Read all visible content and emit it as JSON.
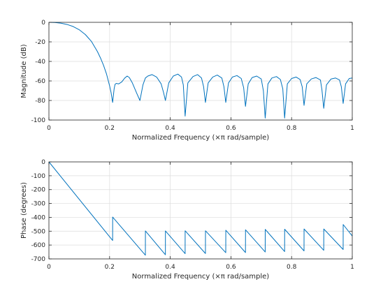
{
  "chart_data": [
    {
      "type": "line",
      "title": "",
      "xlabel": "Normalized Frequency (×π rad/sample)",
      "ylabel": "Magnitude (dB)",
      "xlim": [
        0,
        1
      ],
      "ylim": [
        -100,
        0
      ],
      "xticks": [
        0,
        0.2,
        0.4,
        0.6,
        0.8,
        1
      ],
      "yticks": [
        -100,
        -80,
        -60,
        -40,
        -20,
        0
      ],
      "xtick_labels": [
        "0",
        "0.2",
        "0.4",
        "0.6",
        "0.8",
        "1"
      ],
      "ytick_labels": [
        "-100",
        "-80",
        "-60",
        "-40",
        "-20",
        "0"
      ],
      "grid": true,
      "series": [
        {
          "color": "#0072bd",
          "x": [
            0,
            0.02,
            0.04,
            0.06,
            0.08,
            0.1,
            0.12,
            0.14,
            0.16,
            0.17,
            0.18,
            0.19,
            0.2,
            0.205,
            0.21,
            0.215,
            0.218,
            0.222,
            0.23,
            0.24,
            0.25,
            0.258,
            0.265,
            0.275,
            0.29,
            0.3,
            0.31,
            0.318,
            0.326,
            0.34,
            0.355,
            0.37,
            0.378,
            0.384,
            0.395,
            0.41,
            0.425,
            0.437,
            0.443,
            0.449,
            0.458,
            0.475,
            0.49,
            0.503,
            0.51,
            0.516,
            0.525,
            0.54,
            0.555,
            0.57,
            0.577,
            0.583,
            0.592,
            0.605,
            0.62,
            0.634,
            0.642,
            0.648,
            0.657,
            0.67,
            0.685,
            0.7,
            0.707,
            0.713,
            0.722,
            0.735,
            0.75,
            0.763,
            0.771,
            0.777,
            0.786,
            0.8,
            0.815,
            0.828,
            0.835,
            0.841,
            0.85,
            0.865,
            0.88,
            0.895,
            0.9,
            0.906,
            0.915,
            0.93,
            0.945,
            0.958,
            0.964,
            0.97,
            0.978,
            0.99,
            1.0
          ],
          "y": [
            0,
            -0.2,
            -0.9,
            -2.2,
            -4.3,
            -7.6,
            -12.5,
            -19.5,
            -30,
            -36.5,
            -44,
            -53,
            -65,
            -72,
            -82,
            -68,
            -63.5,
            -62.5,
            -63,
            -61,
            -57,
            -55,
            -56.5,
            -62,
            -73,
            -80,
            -64,
            -57,
            -55,
            -53.5,
            -56,
            -63,
            -72,
            -80,
            -62,
            -55,
            -53,
            -56,
            -64,
            -96,
            -62,
            -55.5,
            -53.5,
            -57,
            -66,
            -82,
            -62,
            -56,
            -54,
            -57,
            -66,
            -82,
            -62,
            -56,
            -54.5,
            -57.5,
            -67,
            -86,
            -63,
            -56.5,
            -55,
            -58,
            -70,
            -98,
            -63,
            -57,
            -55.5,
            -58.5,
            -68,
            -98,
            -63,
            -57.5,
            -56,
            -58.5,
            -66,
            -85,
            -63,
            -58,
            -56.5,
            -59,
            -69,
            -88,
            -64,
            -58,
            -57,
            -59,
            -66,
            -83,
            -63,
            -57.5,
            -57
          ]
        }
      ]
    },
    {
      "type": "line",
      "title": "",
      "xlabel": "Normalized Frequency (×π rad/sample)",
      "ylabel": "Phase (degrees)",
      "xlim": [
        0,
        1
      ],
      "ylim": [
        -700,
        0
      ],
      "xticks": [
        0,
        0.2,
        0.4,
        0.6,
        0.8,
        1
      ],
      "yticks": [
        -700,
        -600,
        -500,
        -400,
        -300,
        -200,
        -100,
        0
      ],
      "xtick_labels": [
        "0",
        "0.2",
        "0.4",
        "0.6",
        "0.8",
        "1"
      ],
      "ytick_labels": [
        "-700",
        "-600",
        "-500",
        "-400",
        "-300",
        "-200",
        "-100",
        "0"
      ],
      "grid": true,
      "series": [
        {
          "color": "#0072bd",
          "x": [
            0,
            0.21,
            0.2101,
            0.318,
            0.3181,
            0.384,
            0.3841,
            0.449,
            0.4491,
            0.516,
            0.5161,
            0.583,
            0.5831,
            0.648,
            0.6481,
            0.713,
            0.7131,
            0.777,
            0.7771,
            0.841,
            0.8411,
            0.906,
            0.9061,
            0.97,
            0.9701,
            1.0
          ],
          "y": [
            0,
            -567,
            -398,
            -673,
            -498,
            -670,
            -498,
            -662,
            -497,
            -661,
            -497,
            -655,
            -493,
            -654,
            -490,
            -650,
            -487,
            -647,
            -486,
            -642,
            -484,
            -638,
            -484,
            -632,
            -452,
            -535
          ]
        }
      ]
    }
  ]
}
